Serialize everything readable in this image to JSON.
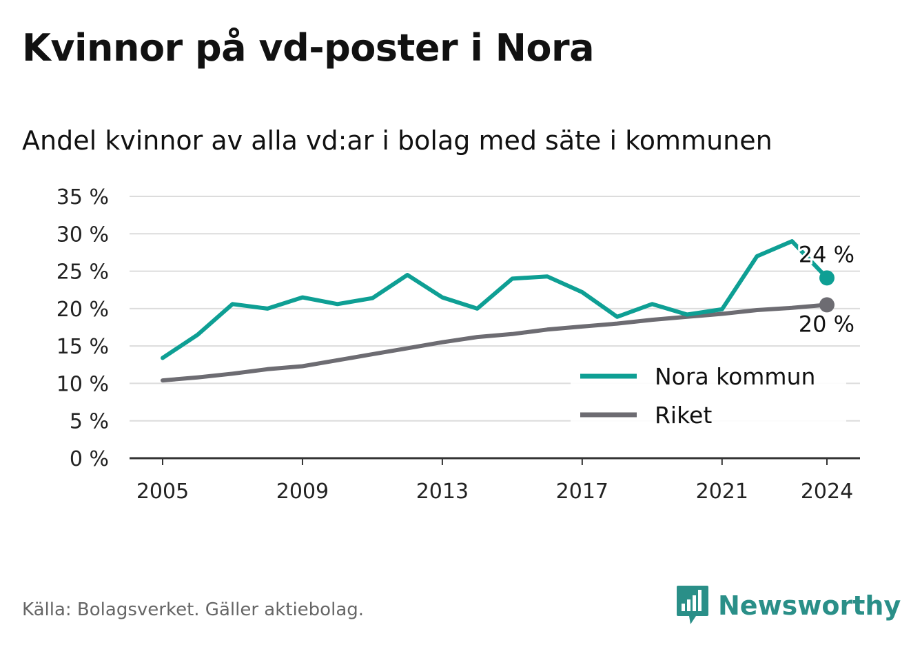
{
  "title": "Kvinnor på vd-poster i Nora",
  "subtitle": "Andel kvinnor av alla vd:ar i bolag med säte i kommunen",
  "source": "Källa: Bolagsverket. Gäller aktiebolag.",
  "brand": {
    "name": "Newsworthy",
    "icon": "newsworthy-logo-icon"
  },
  "colors": {
    "nora": "#0e9f94",
    "riket": "#6d6c72",
    "grid": "#dcdcdc",
    "axis": "#333333"
  },
  "chart_data": {
    "type": "line",
    "x": [
      2005,
      2006,
      2007,
      2008,
      2009,
      2010,
      2011,
      2012,
      2013,
      2014,
      2015,
      2016,
      2017,
      2018,
      2019,
      2020,
      2021,
      2022,
      2023,
      2024
    ],
    "xticks": [
      "2005",
      "2009",
      "2013",
      "2017",
      "2021",
      "2024"
    ],
    "yticks": [
      "0 %",
      "5 %",
      "10 %",
      "15 %",
      "20 %",
      "25 %",
      "30 %",
      "35 %"
    ],
    "ylim": [
      0,
      35
    ],
    "grid": true,
    "legend_position": "bottom-right",
    "series": [
      {
        "name": "Nora kommun",
        "color": "#0e9f94",
        "values": [
          13.4,
          16.5,
          20.6,
          20.0,
          21.5,
          20.6,
          21.4,
          24.5,
          21.5,
          20.0,
          24.0,
          24.3,
          22.2,
          18.9,
          20.6,
          19.2,
          19.9,
          27.0,
          29.0,
          24.1
        ],
        "end_label": "24 %"
      },
      {
        "name": "Riket",
        "color": "#6d6c72",
        "values": [
          10.4,
          10.8,
          11.3,
          11.9,
          12.3,
          13.1,
          13.9,
          14.7,
          15.5,
          16.2,
          16.6,
          17.2,
          17.6,
          18.0,
          18.5,
          18.9,
          19.3,
          19.8,
          20.1,
          20.5
        ],
        "end_label": "20 %"
      }
    ]
  }
}
